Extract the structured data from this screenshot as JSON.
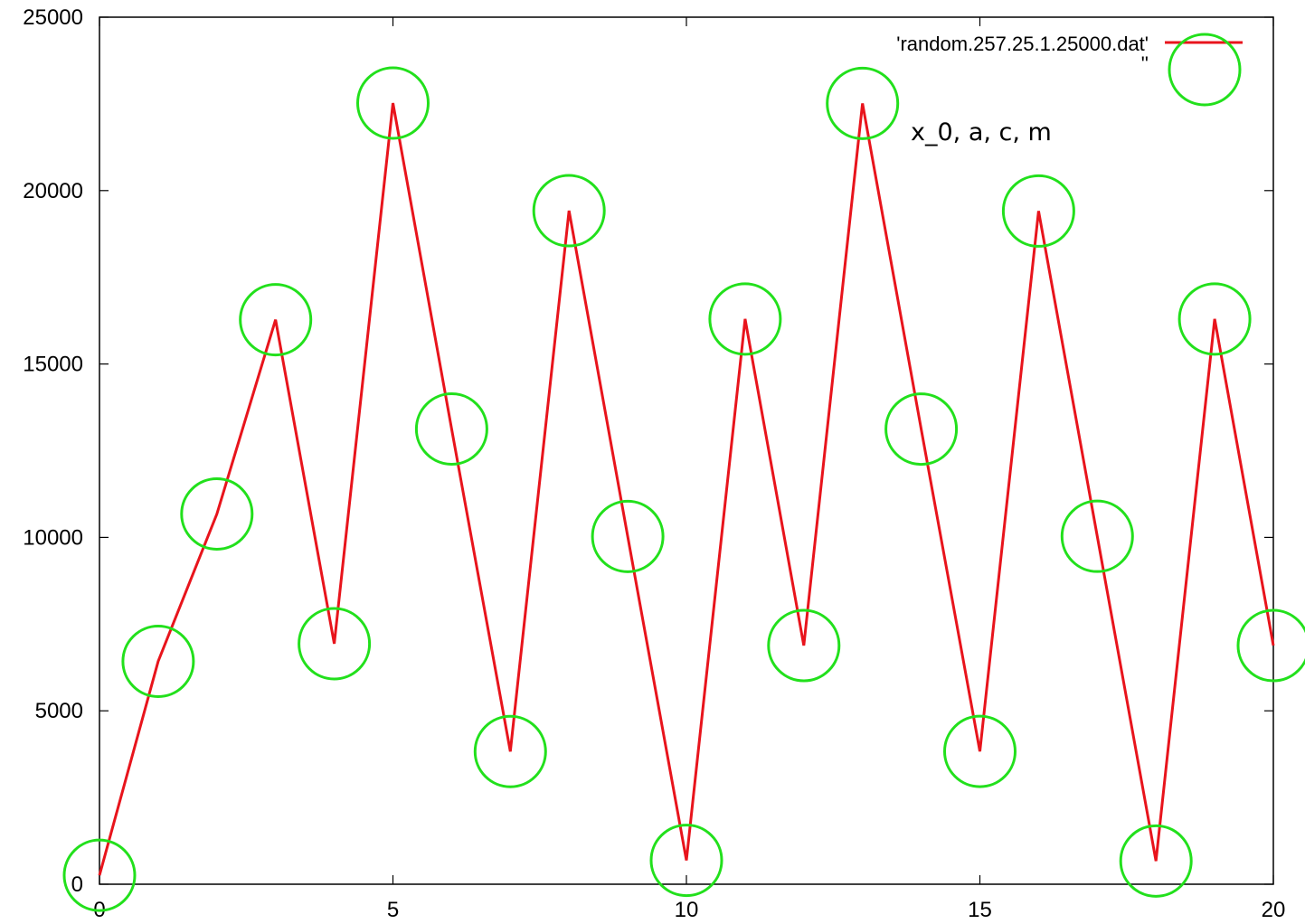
{
  "chart_data": {
    "type": "line",
    "title": "",
    "xlabel": "",
    "ylabel": "",
    "xlim": [
      0,
      20
    ],
    "ylim": [
      0,
      25000
    ],
    "x_ticks": [
      0,
      5,
      10,
      15,
      20
    ],
    "y_ticks": [
      0,
      5000,
      10000,
      15000,
      20000,
      25000
    ],
    "x_tick_labels": [
      "0",
      "5",
      "10",
      "15",
      "20"
    ],
    "y_tick_labels": [
      "0",
      "5000",
      "10000",
      "15000",
      "20000",
      "25000"
    ],
    "x": [
      0,
      1,
      2,
      3,
      4,
      5,
      6,
      7,
      8,
      9,
      10,
      11,
      12,
      13,
      14,
      15,
      16,
      17,
      18,
      19,
      20
    ],
    "series": [
      {
        "name": "'random.257.25.1.25000.dat'",
        "style": "line",
        "color": "#e8141c",
        "values": [
          257,
          6426,
          10676,
          16277,
          6935,
          22524,
          13126,
          3826,
          19420,
          10027,
          689,
          16297,
          6881,
          22514,
          13124,
          3830,
          19410,
          10032,
          669,
          16297,
          6881
        ]
      },
      {
        "name": "''",
        "style": "circle-markers",
        "color": "#22e01c",
        "values": [
          257,
          6426,
          10676,
          16277,
          6935,
          22524,
          13126,
          3826,
          19420,
          10027,
          689,
          16297,
          6881,
          22514,
          13124,
          3830,
          19410,
          10032,
          669,
          16297,
          6881
        ]
      }
    ],
    "annotations": [
      "x_0,  a, c,  m"
    ],
    "legend": {
      "position": "top-right",
      "entries": [
        "'random.257.25.1.25000.dat'",
        "''"
      ]
    },
    "grid": false
  }
}
